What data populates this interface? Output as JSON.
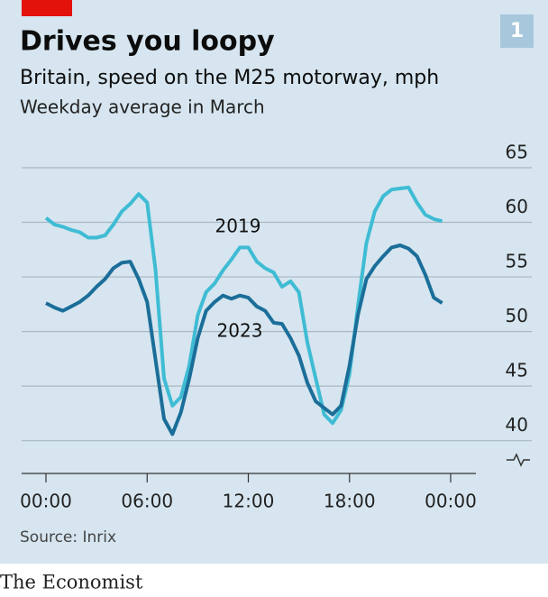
{
  "badge": "1",
  "brand": "The Economist",
  "chart_data": {
    "type": "line",
    "title": "Drives you loopy",
    "subtitle": "Britain, speed on the M25 motorway, mph",
    "note": "Weekday average in March",
    "source": "Source: Inrix",
    "x": [
      0,
      0.5,
      1,
      1.5,
      2,
      2.5,
      3,
      3.5,
      4,
      4.5,
      5,
      5.5,
      6,
      6.5,
      7,
      7.5,
      8,
      8.5,
      9,
      9.5,
      10,
      10.5,
      11,
      11.5,
      12,
      12.5,
      13,
      13.5,
      14,
      14.5,
      15,
      15.5,
      16,
      16.5,
      17,
      17.5,
      18,
      18.5,
      19,
      19.5,
      20,
      20.5,
      21,
      21.5,
      22,
      22.5,
      23,
      23.5
    ],
    "series": [
      {
        "name": "2019",
        "color": "#3fbcd4",
        "values": [
          60.4,
          59.8,
          59.6,
          59.3,
          59.1,
          58.6,
          58.6,
          58.8,
          59.8,
          61.0,
          61.7,
          62.6,
          61.8,
          55.6,
          45.7,
          43.2,
          44.0,
          46.9,
          51.5,
          53.6,
          54.4,
          55.6,
          56.6,
          57.7,
          57.7,
          56.4,
          55.8,
          55.4,
          54.1,
          54.6,
          53.6,
          49.0,
          45.7,
          42.4,
          41.6,
          42.8,
          46.1,
          52.3,
          58.1,
          61.0,
          62.4,
          63.0,
          63.1,
          63.2,
          61.8,
          60.7,
          60.3,
          60.1
        ]
      },
      {
        "name": "2023",
        "color": "#1b6e99",
        "values": [
          52.6,
          52.2,
          51.9,
          52.3,
          52.7,
          53.3,
          54.1,
          54.8,
          55.8,
          56.3,
          56.4,
          54.8,
          52.7,
          47.4,
          42.0,
          40.6,
          42.6,
          45.7,
          49.4,
          51.9,
          52.7,
          53.3,
          53.0,
          53.3,
          53.1,
          52.3,
          51.9,
          50.8,
          50.7,
          49.4,
          47.8,
          45.3,
          43.6,
          43.0,
          42.4,
          43.2,
          46.9,
          51.5,
          54.8,
          56.0,
          56.9,
          57.7,
          57.9,
          57.6,
          56.9,
          55.2,
          53.1,
          52.6
        ]
      }
    ],
    "xlim": [
      0,
      24
    ],
    "xticks": [
      {
        "value": 0,
        "label": "00:00"
      },
      {
        "value": 6,
        "label": "06:00"
      },
      {
        "value": 12,
        "label": "12:00"
      },
      {
        "value": 18,
        "label": "18:00"
      },
      {
        "value": 24,
        "label": "00:00"
      }
    ],
    "ylim": [
      37,
      65
    ],
    "yticks": [
      40,
      45,
      50,
      55,
      60,
      65
    ],
    "grid": true
  }
}
